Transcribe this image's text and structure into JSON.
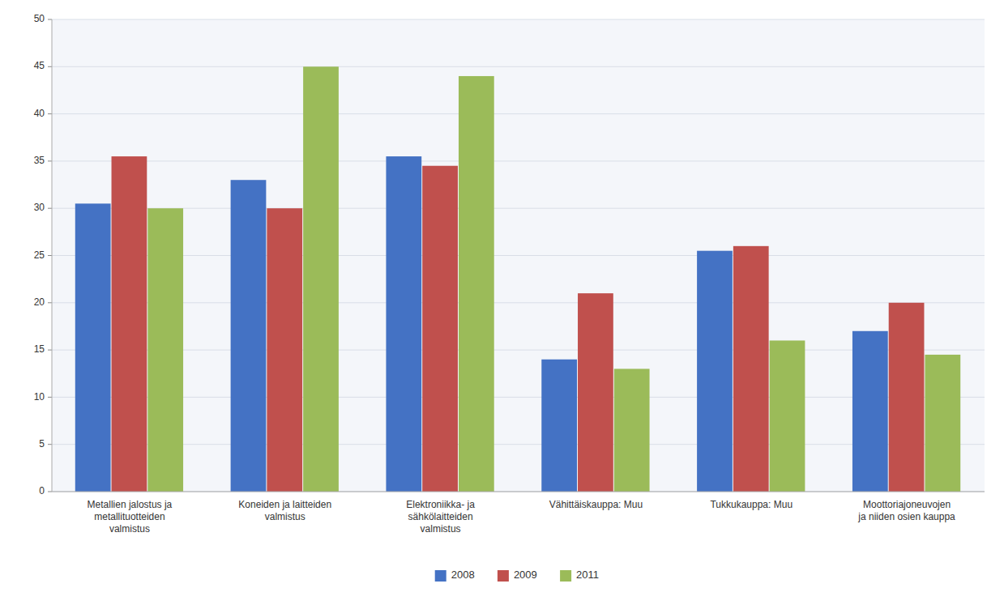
{
  "chart_data": {
    "type": "bar",
    "categories": [
      "Metallien jalostus ja\nmetallituotteiden\nvalmistus",
      "Koneiden ja laitteiden\nvalmistus",
      "Elektroniikka- ja\nsähkölaitteiden\nvalmistus",
      "Vähittäiskauppa: Muu",
      "Tukkukauppa: Muu",
      "Moottoriajoneuvojen\nja niiden osien kauppa"
    ],
    "series": [
      {
        "name": "2008",
        "color": "#4472C4",
        "values": [
          30.5,
          33,
          35.5,
          14,
          25.5,
          17
        ]
      },
      {
        "name": "2009",
        "color": "#C0504D",
        "values": [
          35.5,
          30,
          34.5,
          21,
          26,
          20
        ]
      },
      {
        "name": "2011",
        "color": "#9BBB59",
        "values": [
          30,
          45,
          44,
          13,
          16,
          14.5
        ]
      }
    ],
    "ylim": [
      0,
      50
    ],
    "yticks": [
      0,
      5,
      10,
      15,
      20,
      25,
      30,
      35,
      40,
      45,
      50
    ],
    "grid": true,
    "legend": "bottom"
  }
}
